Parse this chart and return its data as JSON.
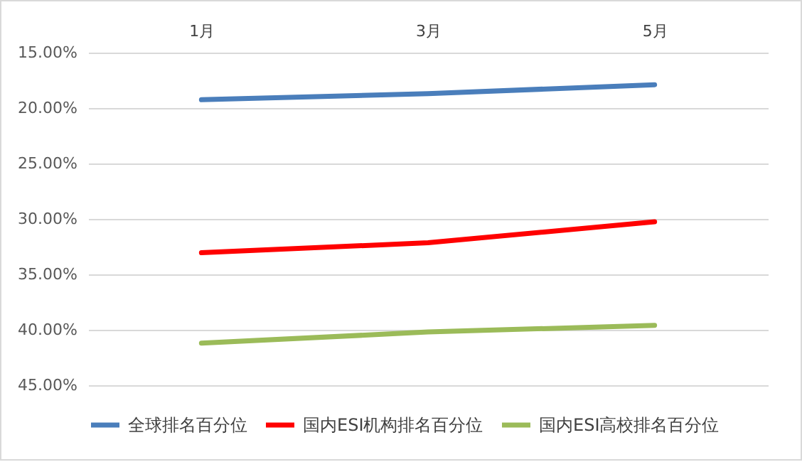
{
  "chart_data": {
    "type": "line",
    "categories": [
      "1月",
      "3月",
      "5月"
    ],
    "series": [
      {
        "name": "全球排名百分位",
        "color": "#4a7ebb",
        "values": [
          19.25,
          18.7,
          17.9
        ]
      },
      {
        "name": "国内ESI机构排名百分位",
        "color": "#ff0000",
        "values": [
          33.05,
          32.15,
          30.25
        ]
      },
      {
        "name": "国内ESI高校排名百分位",
        "color": "#9bbb59",
        "values": [
          41.2,
          40.2,
          39.6
        ]
      }
    ],
    "ylim": [
      45,
      15
    ],
    "yticks": [
      {
        "value": 15,
        "label": "15.00%"
      },
      {
        "value": 20,
        "label": "20.00%"
      },
      {
        "value": 25,
        "label": "25.00%"
      },
      {
        "value": 30,
        "label": "30.00%"
      },
      {
        "value": 35,
        "label": "35.00%"
      },
      {
        "value": 40,
        "label": "40.00%"
      },
      {
        "value": 45,
        "label": "45.00%"
      }
    ],
    "grid": "y",
    "legend": "bottom"
  }
}
